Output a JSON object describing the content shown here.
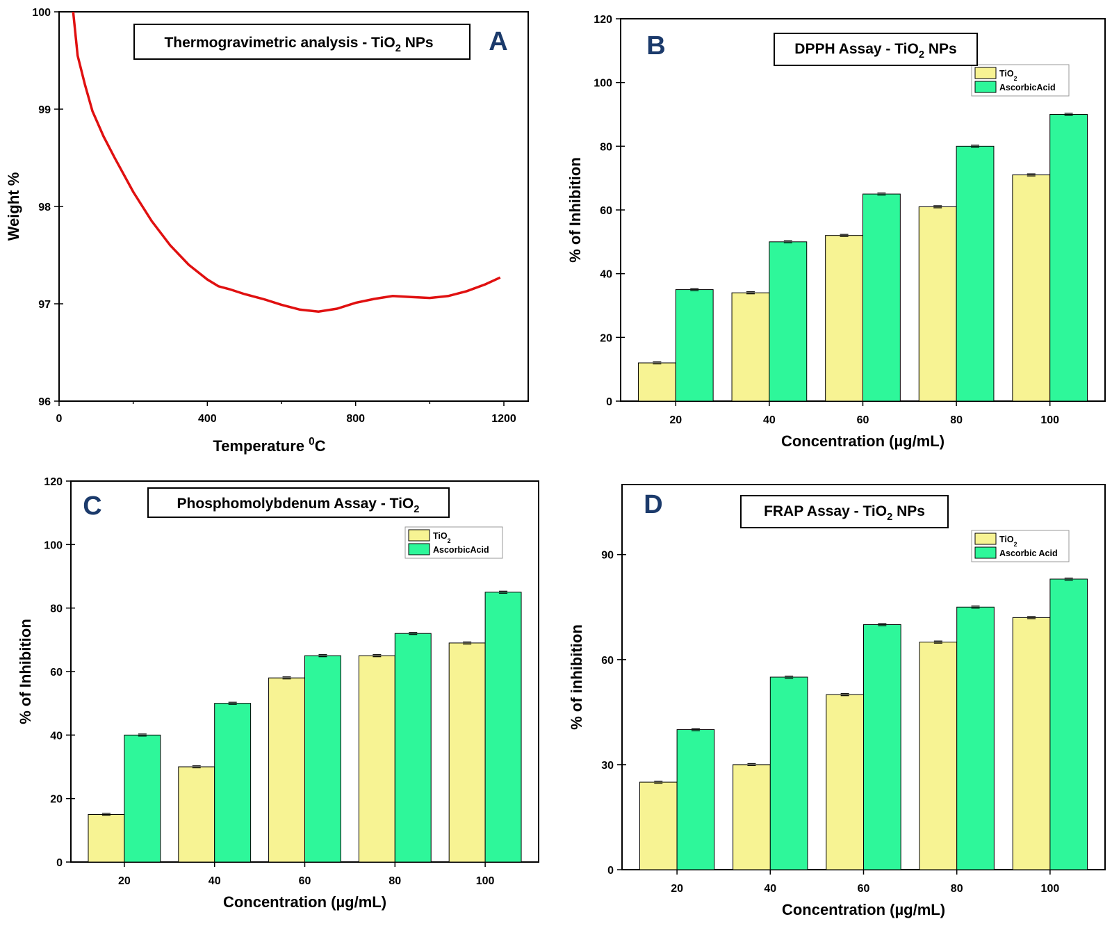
{
  "colors": {
    "tio2": "#f7f393",
    "ascorbic": "#2ef79a",
    "tga_line": "#e01010",
    "panel_letter": "#1b3a6b"
  },
  "chart_data": [
    {
      "id": "A",
      "type": "line",
      "panel_letter": "A",
      "title": "Thermogravimetric analysis - TiO",
      "title_sub": "2",
      "title_after": " NPs",
      "xlabel": "Temperature ",
      "xlabel_sup": "0",
      "xlabel_after": "C",
      "ylabel": "Weight %",
      "xlim": [
        0,
        1200
      ],
      "ylim": [
        96,
        100
      ],
      "xticks": [
        0,
        400,
        800,
        1200
      ],
      "yticks": [
        96,
        97,
        98,
        99,
        100
      ],
      "series": [
        {
          "x": [
            38,
            50,
            70,
            90,
            120,
            150,
            200,
            250,
            300,
            350,
            400,
            430,
            460,
            500,
            550,
            600,
            650,
            700,
            750,
            800,
            850,
            900,
            950,
            1000,
            1050,
            1100,
            1150,
            1190
          ],
          "y": [
            100.0,
            99.55,
            99.25,
            98.98,
            98.72,
            98.5,
            98.15,
            97.85,
            97.6,
            97.4,
            97.25,
            97.18,
            97.15,
            97.1,
            97.05,
            96.99,
            96.94,
            96.92,
            96.95,
            97.01,
            97.05,
            97.08,
            97.07,
            97.06,
            97.08,
            97.13,
            97.2,
            97.27
          ]
        }
      ]
    },
    {
      "id": "B",
      "type": "bar",
      "panel_letter": "B",
      "title": "DPPH Assay - TiO",
      "title_sub": "2",
      "title_after": " NPs",
      "xlabel": "Concentration (µg/mL)",
      "ylabel": "% of Inhibition",
      "categories": [
        "20",
        "40",
        "60",
        "80",
        "100"
      ],
      "ylim": [
        0,
        120
      ],
      "yticks": [
        0,
        20,
        40,
        60,
        80,
        100,
        120
      ],
      "legend_position": "top-right",
      "series": [
        {
          "name": "TiO",
          "name_sub": "2",
          "values": [
            12,
            34,
            52,
            61,
            71
          ]
        },
        {
          "name": "AscorbicAcid",
          "name_sub": "",
          "values": [
            35,
            50,
            65,
            80,
            90
          ]
        }
      ]
    },
    {
      "id": "C",
      "type": "bar",
      "panel_letter": "C",
      "title": "Phosphomolybdenum Assay - TiO",
      "title_sub": "2",
      "title_after": "",
      "xlabel": "Concentration (µg/mL)",
      "ylabel": "% of Inhibition",
      "categories": [
        "20",
        "40",
        "60",
        "80",
        "100"
      ],
      "ylim": [
        0,
        120
      ],
      "yticks": [
        0,
        20,
        40,
        60,
        80,
        100,
        120
      ],
      "legend_position": "top-right",
      "series": [
        {
          "name": "TiO",
          "name_sub": "2",
          "values": [
            15,
            30,
            58,
            65,
            69
          ]
        },
        {
          "name": "AscorbicAcid",
          "name_sub": "",
          "values": [
            40,
            50,
            65,
            72,
            85
          ]
        }
      ]
    },
    {
      "id": "D",
      "type": "bar",
      "panel_letter": "D",
      "title": "FRAP Assay - TiO",
      "title_sub": "2",
      "title_after": " NPs",
      "xlabel": "Concentration (µg/mL)",
      "ylabel": "% of inhibition",
      "categories": [
        "20",
        "40",
        "60",
        "80",
        "100"
      ],
      "ylim": [
        0,
        110
      ],
      "yticks": [
        0,
        30,
        60,
        90
      ],
      "legend_position": "top-right",
      "series": [
        {
          "name": "TiO",
          "name_sub": "2",
          "values": [
            25,
            30,
            50,
            65,
            72
          ]
        },
        {
          "name": "Ascorbic Acid",
          "name_sub": "",
          "values": [
            40,
            55,
            70,
            75,
            83
          ]
        }
      ]
    }
  ]
}
